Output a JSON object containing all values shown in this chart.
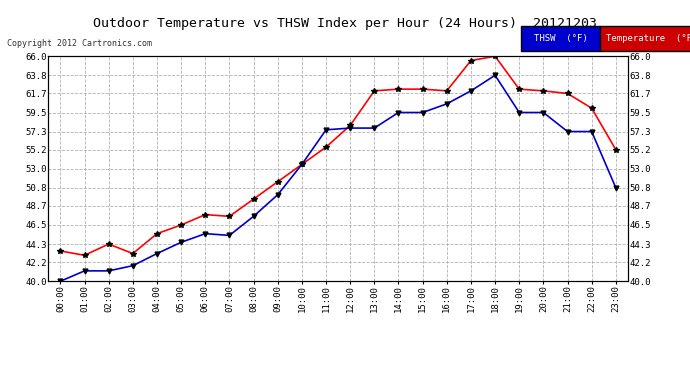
{
  "title": "Outdoor Temperature vs THSW Index per Hour (24 Hours)  20121203",
  "copyright": "Copyright 2012 Cartronics.com",
  "hours": [
    "00:00",
    "01:00",
    "02:00",
    "03:00",
    "04:00",
    "05:00",
    "06:00",
    "07:00",
    "08:00",
    "09:00",
    "10:00",
    "11:00",
    "12:00",
    "13:00",
    "14:00",
    "15:00",
    "16:00",
    "17:00",
    "18:00",
    "19:00",
    "20:00",
    "21:00",
    "22:00",
    "23:00"
  ],
  "temperature": [
    43.5,
    43.0,
    44.3,
    43.2,
    45.5,
    46.5,
    47.7,
    47.5,
    49.5,
    51.5,
    53.5,
    55.5,
    58.0,
    62.0,
    62.2,
    62.2,
    62.0,
    65.5,
    66.0,
    62.2,
    62.0,
    61.7,
    60.0,
    55.2
  ],
  "thsw": [
    40.0,
    41.2,
    41.2,
    41.8,
    43.2,
    44.5,
    45.5,
    45.3,
    47.5,
    50.0,
    53.5,
    57.5,
    57.7,
    57.7,
    59.5,
    59.5,
    60.5,
    62.0,
    63.8,
    59.5,
    59.5,
    57.3,
    57.3,
    50.8
  ],
  "ylim": [
    40.0,
    66.0
  ],
  "yticks": [
    40.0,
    42.2,
    44.3,
    46.5,
    48.7,
    50.8,
    53.0,
    55.2,
    57.3,
    59.5,
    61.7,
    63.8,
    66.0
  ],
  "temp_color": "#ff0000",
  "thsw_color": "#0000cc",
  "marker_color": "#000000",
  "bg_color": "#ffffff",
  "grid_color": "#aaaaaa",
  "legend_thsw_bg": "#0000cc",
  "legend_temp_bg": "#cc0000"
}
